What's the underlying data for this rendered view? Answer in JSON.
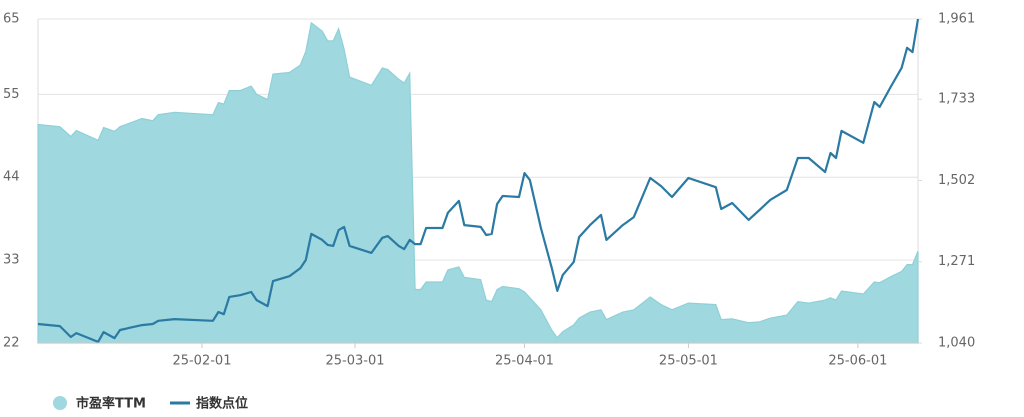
{
  "chart_data": {
    "type": "area-line",
    "x": [
      "25-01-02",
      "25-01-06",
      "25-01-08",
      "25-01-09",
      "25-01-13",
      "25-01-14",
      "25-01-16",
      "25-01-17",
      "25-01-21",
      "25-01-23",
      "25-01-24",
      "25-01-27",
      "25-02-03",
      "25-02-04",
      "25-02-05",
      "25-02-06",
      "25-02-08",
      "25-02-10",
      "25-02-11",
      "25-02-13",
      "25-02-14",
      "25-02-17",
      "25-02-19",
      "25-02-20",
      "25-02-21",
      "25-02-23",
      "25-02-24",
      "25-02-25",
      "25-02-26",
      "25-02-27",
      "25-02-28",
      "25-03-04",
      "25-03-06",
      "25-03-07",
      "25-03-09",
      "25-03-10",
      "25-03-11",
      "25-03-12",
      "25-03-13",
      "25-03-14",
      "25-03-17",
      "25-03-18",
      "25-03-20",
      "25-03-21",
      "25-03-24",
      "25-03-25",
      "25-03-26",
      "25-03-27",
      "25-03-28",
      "25-03-31",
      "25-04-01",
      "25-04-02",
      "25-04-04",
      "25-04-06",
      "25-04-07",
      "25-04-08",
      "25-04-10",
      "25-04-11",
      "25-04-13",
      "25-04-15",
      "25-04-16",
      "25-04-19",
      "25-04-21",
      "25-04-24",
      "25-04-26",
      "25-04-28",
      "25-05-01",
      "25-05-06",
      "25-05-07",
      "25-05-09",
      "25-05-12",
      "25-05-14",
      "25-05-16",
      "25-05-19",
      "25-05-21",
      "25-05-23",
      "25-05-26",
      "25-05-27",
      "25-05-28",
      "25-05-29",
      "25-06-02",
      "25-06-04",
      "25-06-05",
      "25-06-07",
      "25-06-09",
      "25-06-10",
      "25-06-11",
      "25-06-12"
    ],
    "series": [
      {
        "name": "市盈率TTM",
        "color": "#9fd8de",
        "axis": "y",
        "values": [
          51.0,
          50.7,
          49.4,
          50.2,
          48.9,
          50.6,
          50.1,
          50.7,
          51.8,
          51.5,
          52.3,
          52.6,
          52.3,
          53.9,
          53.7,
          55.5,
          55.5,
          56.1,
          55.0,
          54.3,
          57.7,
          57.9,
          58.9,
          60.7,
          64.5,
          63.4,
          62.1,
          62.1,
          63.7,
          61.0,
          57.3,
          56.2,
          58.5,
          58.3,
          57.0,
          56.5,
          57.8,
          29.1,
          29.1,
          30.1,
          30.1,
          31.7,
          32.1,
          30.7,
          30.4,
          27.7,
          27.5,
          29.1,
          29.5,
          29.2,
          28.8,
          28.0,
          26.4,
          23.7,
          22.7,
          23.5,
          24.4,
          25.3,
          26.1,
          26.4,
          25.1,
          26.1,
          26.4,
          28.1,
          27.1,
          26.4,
          27.3,
          27.1,
          25.1,
          25.2,
          24.7,
          24.8,
          25.3,
          25.7,
          27.5,
          27.3,
          27.7,
          28.0,
          27.7,
          28.9,
          28.5,
          30.1,
          30.0,
          30.8,
          31.5,
          32.4,
          32.4,
          34.2
        ]
      },
      {
        "name": "指数点位",
        "color": "#2a7aa3",
        "axis": "y2",
        "values": [
          1094,
          1088,
          1057,
          1068,
          1043,
          1071,
          1054,
          1077,
          1091,
          1094,
          1103,
          1108,
          1103,
          1128,
          1122,
          1171,
          1176,
          1185,
          1162,
          1145,
          1216,
          1230,
          1253,
          1276,
          1350,
          1333,
          1319,
          1316,
          1361,
          1370,
          1316,
          1296,
          1339,
          1344,
          1316,
          1307,
          1333,
          1321,
          1321,
          1367,
          1367,
          1410,
          1444,
          1375,
          1370,
          1347,
          1350,
          1435,
          1458,
          1455,
          1523,
          1503,
          1367,
          1253,
          1188,
          1233,
          1270,
          1341,
          1375,
          1404,
          1333,
          1375,
          1398,
          1509,
          1486,
          1455,
          1509,
          1483,
          1421,
          1438,
          1390,
          1418,
          1447,
          1475,
          1566,
          1566,
          1526,
          1580,
          1566,
          1643,
          1609,
          1725,
          1711,
          1768,
          1822,
          1879,
          1867,
          1961
        ]
      }
    ],
    "xlim": [
      "25-01-02",
      "25-06-12"
    ],
    "xticks": [
      "25-02-01",
      "25-03-01",
      "25-04-01",
      "25-05-01",
      "25-06-01"
    ],
    "ylim": [
      22,
      65
    ],
    "yticks": [
      22,
      33,
      44,
      55,
      65
    ],
    "y2lim": [
      1040,
      1961
    ],
    "y2ticks": [
      {
        "value": 1040,
        "label": "1,040"
      },
      {
        "value": 1271,
        "label": "1,271"
      },
      {
        "value": 1502,
        "label": "1,502"
      },
      {
        "value": 1733,
        "label": "1,733"
      },
      {
        "value": 1961,
        "label": "1,961"
      }
    ],
    "grid": true,
    "legend": "bottom-left"
  }
}
